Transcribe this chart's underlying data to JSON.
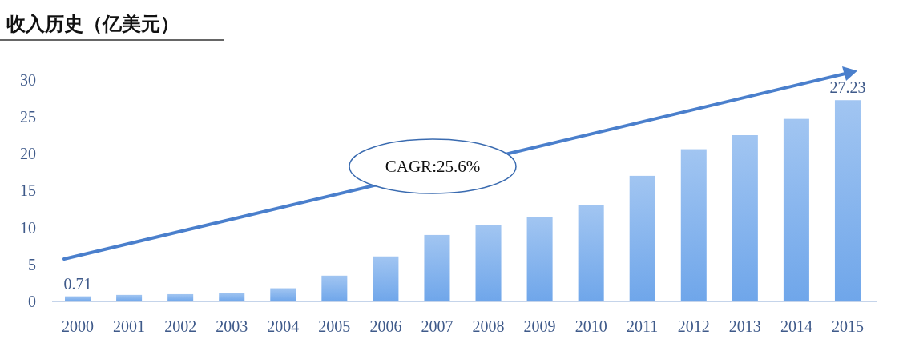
{
  "chart_data": {
    "type": "bar",
    "title": "收入历史（亿美元）",
    "categories": [
      "2000",
      "2001",
      "2002",
      "2003",
      "2004",
      "2005",
      "2006",
      "2007",
      "2008",
      "2009",
      "2010",
      "2011",
      "2012",
      "2013",
      "2014",
      "2015"
    ],
    "values": [
      0.71,
      0.9,
      1.0,
      1.2,
      1.8,
      3.5,
      6.1,
      9.0,
      10.3,
      11.4,
      13.0,
      17.0,
      20.6,
      22.5,
      24.7,
      27.23
    ],
    "value_labels": [
      "0.71",
      null,
      null,
      null,
      null,
      null,
      null,
      null,
      null,
      null,
      null,
      null,
      null,
      null,
      null,
      "27.23"
    ],
    "color": "#6fa6ea",
    "ylim": [
      0,
      30
    ],
    "yticks": [
      0,
      5,
      10,
      15,
      20,
      25,
      30
    ],
    "annotations": [
      "CAGR:25.6%"
    ],
    "grid": false
  }
}
